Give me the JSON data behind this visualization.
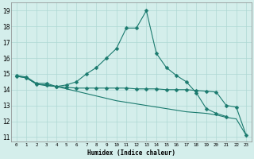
{
  "series1_x": [
    0,
    1,
    2,
    3,
    4,
    5,
    6,
    7,
    8,
    9,
    10,
    11,
    12,
    13,
    14,
    15,
    16,
    17,
    18,
    19,
    20,
    21
  ],
  "series1_y": [
    14.9,
    14.8,
    14.4,
    14.4,
    14.2,
    14.3,
    14.5,
    15.0,
    15.4,
    16.0,
    16.6,
    17.9,
    17.9,
    19.0,
    16.3,
    15.4,
    14.9,
    14.5,
    13.8,
    12.8,
    12.5,
    12.3
  ],
  "series2_x": [
    0,
    1,
    2,
    3,
    4,
    5,
    6,
    7,
    8,
    9,
    10,
    11,
    12,
    13,
    14,
    15,
    16,
    17,
    18,
    19,
    20,
    21,
    22,
    23
  ],
  "series2_y": [
    14.85,
    14.75,
    14.35,
    14.3,
    14.2,
    14.15,
    14.1,
    14.1,
    14.1,
    14.1,
    14.1,
    14.1,
    14.05,
    14.05,
    14.05,
    14.0,
    14.0,
    14.0,
    13.95,
    13.9,
    13.85,
    13.0,
    12.9,
    11.1
  ],
  "series3_x": [
    0,
    1,
    2,
    3,
    4,
    5,
    6,
    7,
    8,
    9,
    10,
    11,
    12,
    13,
    14,
    15,
    16,
    17,
    18,
    19,
    20,
    21,
    22,
    23
  ],
  "series3_y": [
    14.85,
    14.75,
    14.35,
    14.25,
    14.2,
    14.05,
    13.9,
    13.75,
    13.6,
    13.45,
    13.3,
    13.2,
    13.1,
    13.0,
    12.9,
    12.8,
    12.7,
    12.6,
    12.55,
    12.5,
    12.4,
    12.25,
    12.15,
    11.1
  ],
  "line_color": "#1a7a6e",
  "bg_color": "#d4eeeb",
  "grid_color": "#aed8d3",
  "xlabel": "Humidex (Indice chaleur)",
  "ylabel_ticks": [
    11,
    12,
    13,
    14,
    15,
    16,
    17,
    18,
    19
  ],
  "xlim": [
    -0.5,
    23.5
  ],
  "ylim": [
    10.7,
    19.5
  ],
  "xticks": [
    0,
    1,
    2,
    3,
    4,
    5,
    6,
    7,
    8,
    9,
    10,
    11,
    12,
    13,
    14,
    15,
    16,
    17,
    18,
    19,
    20,
    21,
    22,
    23
  ],
  "marker": "D",
  "markersize": 2.5
}
